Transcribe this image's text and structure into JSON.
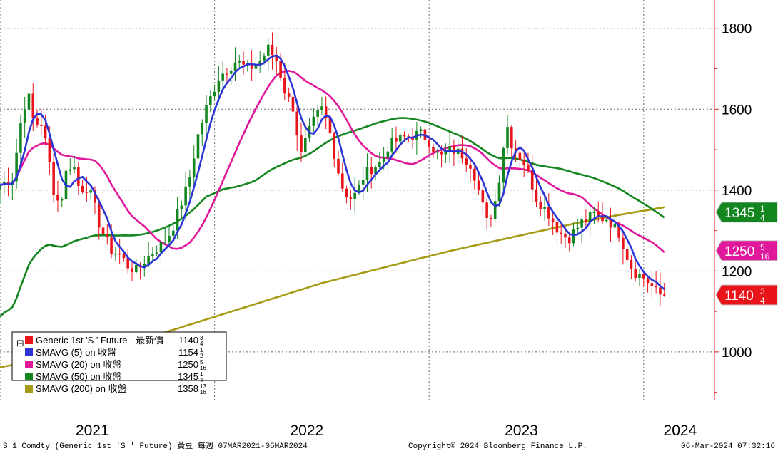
{
  "chart_data": {
    "type": "candlestick",
    "y_ticks": [
      "1800",
      "1600",
      "1400",
      "1200",
      "1000"
    ],
    "y_tick_values": [
      1800,
      1600,
      1400,
      1200,
      1000
    ],
    "ylim": [
      880,
      1870
    ],
    "x_years": [
      {
        "label": "2021",
        "pos": 0.43
      },
      {
        "label": "2022",
        "pos": 1.43
      },
      {
        "label": "2023",
        "pos": 2.43
      },
      {
        "label": "2024",
        "pos": 3.17
      }
    ],
    "x_range_years": [
      0,
      3.33
    ],
    "price_anchors": [
      [
        0.0,
        1412
      ],
      [
        0.06,
        1430
      ],
      [
        0.1,
        1580
      ],
      [
        0.13,
        1640
      ],
      [
        0.16,
        1560
      ],
      [
        0.19,
        1570
      ],
      [
        0.22,
        1500
      ],
      [
        0.25,
        1400
      ],
      [
        0.28,
        1360
      ],
      [
        0.31,
        1450
      ],
      [
        0.34,
        1470
      ],
      [
        0.37,
        1400
      ],
      [
        0.4,
        1410
      ],
      [
        0.43,
        1380
      ],
      [
        0.46,
        1320
      ],
      [
        0.49,
        1280
      ],
      [
        0.52,
        1250
      ],
      [
        0.56,
        1240
      ],
      [
        0.6,
        1210
      ],
      [
        0.64,
        1200
      ],
      [
        0.68,
        1230
      ],
      [
        0.72,
        1250
      ],
      [
        0.76,
        1270
      ],
      [
        0.8,
        1300
      ],
      [
        0.84,
        1360
      ],
      [
        0.88,
        1420
      ],
      [
        0.92,
        1530
      ],
      [
        0.96,
        1600
      ],
      [
        0.99,
        1640
      ],
      [
        1.02,
        1680
      ],
      [
        1.06,
        1700
      ],
      [
        1.1,
        1720
      ],
      [
        1.15,
        1700
      ],
      [
        1.2,
        1710
      ],
      [
        1.25,
        1750
      ],
      [
        1.29,
        1720
      ],
      [
        1.33,
        1640
      ],
      [
        1.37,
        1600
      ],
      [
        1.4,
        1480
      ],
      [
        1.43,
        1530
      ],
      [
        1.47,
        1580
      ],
      [
        1.5,
        1600
      ],
      [
        1.53,
        1560
      ],
      [
        1.57,
        1460
      ],
      [
        1.6,
        1400
      ],
      [
        1.63,
        1380
      ],
      [
        1.66,
        1390
      ],
      [
        1.69,
        1430
      ],
      [
        1.72,
        1450
      ],
      [
        1.75,
        1460
      ],
      [
        1.78,
        1470
      ],
      [
        1.81,
        1510
      ],
      [
        1.84,
        1520
      ],
      [
        1.88,
        1530
      ],
      [
        1.92,
        1535
      ],
      [
        1.96,
        1540
      ],
      [
        2.0,
        1520
      ],
      [
        2.05,
        1480
      ],
      [
        2.1,
        1500
      ],
      [
        2.15,
        1490
      ],
      [
        2.2,
        1460
      ],
      [
        2.24,
        1380
      ],
      [
        2.27,
        1320
      ],
      [
        2.3,
        1350
      ],
      [
        2.33,
        1440
      ],
      [
        2.36,
        1570
      ],
      [
        2.38,
        1520
      ],
      [
        2.41,
        1490
      ],
      [
        2.44,
        1470
      ],
      [
        2.47,
        1430
      ],
      [
        2.5,
        1380
      ],
      [
        2.53,
        1360
      ],
      [
        2.56,
        1340
      ],
      [
        2.59,
        1310
      ],
      [
        2.62,
        1290
      ],
      [
        2.65,
        1280
      ],
      [
        2.68,
        1300
      ],
      [
        2.71,
        1320
      ],
      [
        2.74,
        1330
      ],
      [
        2.77,
        1340
      ],
      [
        2.8,
        1330
      ],
      [
        2.83,
        1330
      ],
      [
        2.86,
        1310
      ],
      [
        2.89,
        1290
      ],
      [
        2.92,
        1240
      ],
      [
        2.95,
        1200
      ],
      [
        2.98,
        1190
      ],
      [
        3.01,
        1180
      ],
      [
        3.04,
        1160
      ],
      [
        3.07,
        1140
      ],
      [
        3.1,
        1145
      ]
    ],
    "sma_200_anchors": [
      [
        0.0,
        962
      ],
      [
        0.3,
        990
      ],
      [
        0.6,
        1020
      ],
      [
        0.9,
        1070
      ],
      [
        1.2,
        1120
      ],
      [
        1.5,
        1170
      ],
      [
        1.8,
        1210
      ],
      [
        2.1,
        1250
      ],
      [
        2.4,
        1285
      ],
      [
        2.7,
        1320
      ],
      [
        2.9,
        1340
      ],
      [
        3.1,
        1358
      ]
    ],
    "series": [
      {
        "name": "Generic 1st 'S ' Future - 最新價",
        "color": "#e8141a",
        "value_whole": "1140",
        "value_frac_num": "3",
        "value_frac_den": "4"
      },
      {
        "name": "SMAVG (5)  on 收盤",
        "color": "#2b35d6",
        "value_whole": "1154",
        "value_frac_num": "1",
        "value_frac_den": "2"
      },
      {
        "name": "SMAVG (20)  on 收盤",
        "color": "#e0189b",
        "value_whole": "1250",
        "value_frac_num": "5",
        "value_frac_den": "16"
      },
      {
        "name": "SMAVG (50)  on 收盤",
        "color": "#13861f",
        "value_whole": "1345",
        "value_frac_num": "1",
        "value_frac_den": "4"
      },
      {
        "name": "SMAVG (200)  on 收盤",
        "color": "#a69b14",
        "value_whole": "1358",
        "value_frac_num": "13",
        "value_frac_den": "16"
      }
    ],
    "badges": [
      {
        "whole": "1345",
        "num": "1",
        "den": "4",
        "value": 1345.25,
        "bg": "#13861f",
        "fg": "#ffffff"
      },
      {
        "whole": "1250",
        "num": "5",
        "den": "16",
        "value": 1250.31,
        "bg": "#e0189b",
        "fg": "#ffffff"
      },
      {
        "whole": "1140",
        "num": "3",
        "den": "4",
        "value": 1140.75,
        "bg": "#e8141a",
        "fg": "#ffffff"
      }
    ]
  },
  "footer": {
    "left": "S 1 Comdty (Generic 1st 'S ' Future) 黃豆  每週 07MAR2021-06MAR2024",
    "center": "Copyright© 2024 Bloomberg Finance L.P.",
    "right": "06-Mar-2024 07:32:16"
  }
}
